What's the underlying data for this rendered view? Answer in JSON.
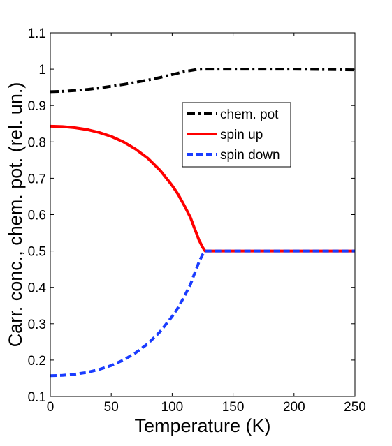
{
  "chart_data": {
    "type": "line",
    "xlabel": "Temperature (K)",
    "ylabel": "Carr. conc., chem. pot. (rel. un.)",
    "xlim": [
      0,
      250
    ],
    "ylim": [
      0.1,
      1.1
    ],
    "xticks": [
      "0",
      "50",
      "100",
      "150",
      "200",
      "250"
    ],
    "yticks": [
      "0.1",
      "0.2",
      "0.3",
      "0.4",
      "0.5",
      "0.6",
      "0.7",
      "0.8",
      "0.9",
      "1",
      "1.1"
    ],
    "grid": false,
    "legend_position": "upper-right",
    "series": [
      {
        "name": "chem. pot",
        "color": "#000000",
        "style": "dash-dot",
        "x": [
          0,
          10,
          20,
          30,
          40,
          50,
          60,
          70,
          80,
          90,
          100,
          110,
          120,
          125,
          130,
          150,
          200,
          250
        ],
        "y": [
          0.938,
          0.939,
          0.941,
          0.944,
          0.948,
          0.953,
          0.958,
          0.964,
          0.97,
          0.977,
          0.985,
          0.993,
          0.999,
          1.0,
          1.0,
          1.0,
          1.0,
          0.998
        ]
      },
      {
        "name": "spin up",
        "color": "#ff0000",
        "style": "solid",
        "x": [
          0,
          10,
          20,
          30,
          40,
          50,
          60,
          70,
          80,
          90,
          100,
          105,
          110,
          115,
          118,
          120,
          122,
          125,
          127,
          150,
          200,
          250
        ],
        "y": [
          0.843,
          0.842,
          0.839,
          0.834,
          0.826,
          0.815,
          0.8,
          0.78,
          0.755,
          0.722,
          0.68,
          0.655,
          0.625,
          0.592,
          0.565,
          0.548,
          0.53,
          0.51,
          0.5,
          0.5,
          0.5,
          0.5
        ]
      },
      {
        "name": "spin down",
        "color": "#1a3cff",
        "style": "dashed",
        "x": [
          0,
          10,
          20,
          30,
          40,
          50,
          60,
          70,
          80,
          90,
          100,
          105,
          110,
          115,
          118,
          120,
          122,
          125,
          127,
          150,
          200,
          250
        ],
        "y": [
          0.157,
          0.158,
          0.161,
          0.166,
          0.174,
          0.185,
          0.2,
          0.22,
          0.245,
          0.278,
          0.32,
          0.345,
          0.375,
          0.408,
          0.435,
          0.452,
          0.47,
          0.49,
          0.5,
          0.5,
          0.5,
          0.5
        ]
      }
    ]
  }
}
